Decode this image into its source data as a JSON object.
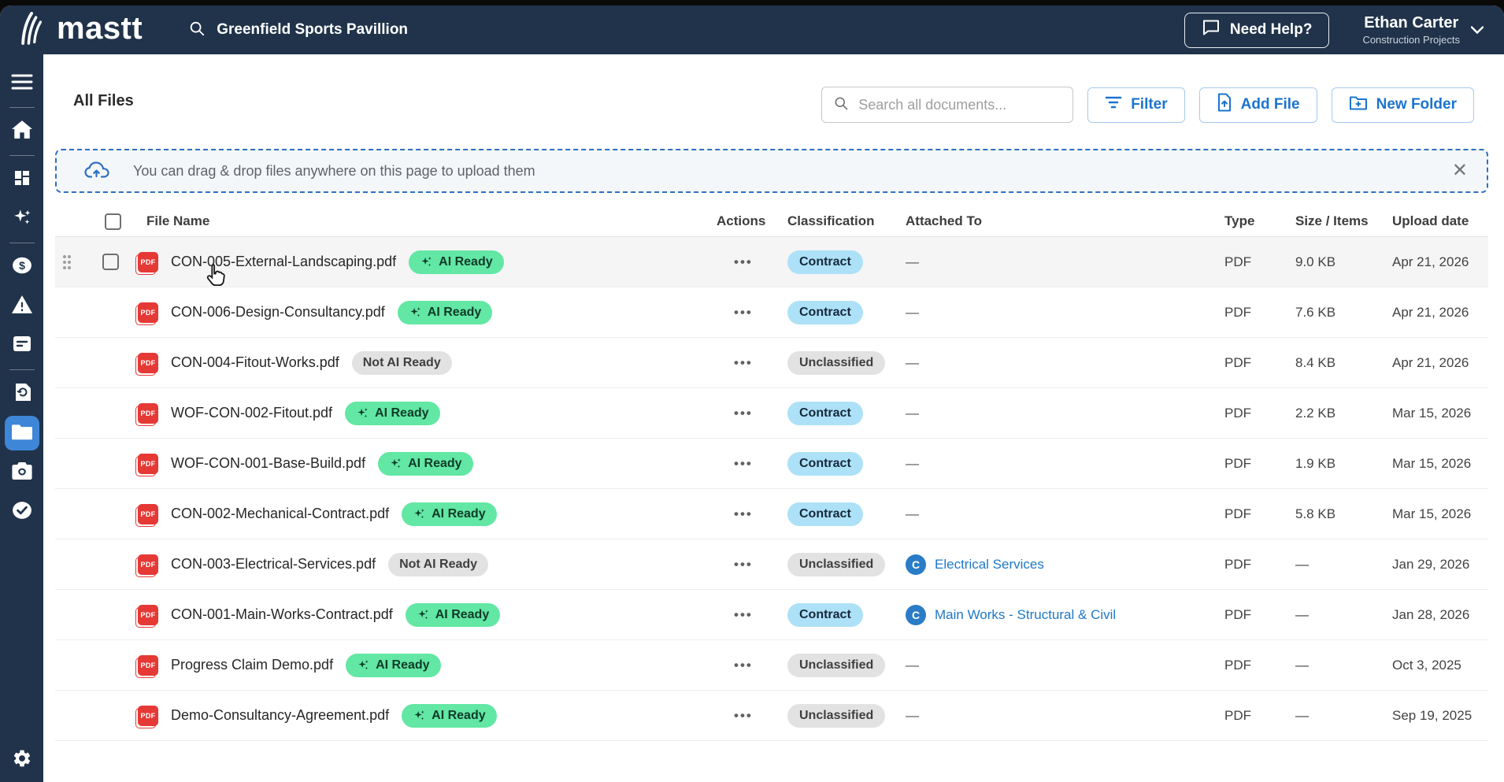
{
  "topbar": {
    "logo_text": "mastt",
    "project_name": "Greenfield Sports Pavillion",
    "help_button": "Need Help?",
    "user": {
      "name": "Ethan Carter",
      "subtitle": "Construction Projects"
    }
  },
  "sidebar": {
    "items": [
      {
        "id": "menu",
        "icon": "hamburger-icon",
        "divider_after": true
      },
      {
        "id": "home",
        "icon": "home-icon",
        "divider_after": true
      },
      {
        "id": "dashboard",
        "icon": "dashboard-icon",
        "divider_after": false
      },
      {
        "id": "ai-assistant",
        "icon": "sparkles-icon",
        "divider_after": true
      },
      {
        "id": "payments",
        "icon": "dollar-circle-icon",
        "divider_after": false
      },
      {
        "id": "risks",
        "icon": "warning-triangle-icon",
        "divider_after": false
      },
      {
        "id": "reports",
        "icon": "report-icon",
        "divider_after": true
      },
      {
        "id": "history",
        "icon": "history-icon",
        "divider_after": false
      },
      {
        "id": "files",
        "icon": "folder-icon",
        "divider_after": false,
        "active": true
      },
      {
        "id": "photos",
        "icon": "camera-icon",
        "divider_after": false
      },
      {
        "id": "approvals",
        "icon": "check-circle-icon",
        "divider_after": false
      }
    ],
    "bottom_item": {
      "id": "settings",
      "icon": "gear-icon"
    }
  },
  "page": {
    "title": "All Files",
    "search_placeholder": "Search all documents...",
    "filter_button": "Filter",
    "add_file_button": "Add File",
    "new_folder_button": "New Folder",
    "upload_banner_text": "You can drag & drop files anywhere on this page to upload them"
  },
  "icons": {
    "more_actions": "•••",
    "close": "✕",
    "pdf_label": "PDF"
  },
  "table": {
    "columns": [
      "File Name",
      "Actions",
      "Classification",
      "Attached To",
      "Type",
      "Size / Items",
      "Upload date"
    ],
    "rows": [
      {
        "file": "CON-005-External-Landscaping.pdf",
        "ai_badge": "AI Ready",
        "classification": "Contract",
        "attached": "—",
        "type": "PDF",
        "size": "9.0 KB",
        "date": "Apr 21, 2026",
        "hover": true,
        "controls": true
      },
      {
        "file": "CON-006-Design-Consultancy.pdf",
        "ai_badge": "AI Ready",
        "classification": "Contract",
        "attached": "—",
        "type": "PDF",
        "size": "7.6 KB",
        "date": "Apr 21, 2026"
      },
      {
        "file": "CON-004-Fitout-Works.pdf",
        "ai_badge": "Not AI Ready",
        "classification": "Unclassified",
        "attached": "—",
        "type": "PDF",
        "size": "8.4 KB",
        "date": "Apr 21, 2026"
      },
      {
        "file": "WOF-CON-002-Fitout.pdf",
        "ai_badge": "AI Ready",
        "classification": "Contract",
        "attached": "—",
        "type": "PDF",
        "size": "2.2 KB",
        "date": "Mar 15, 2026"
      },
      {
        "file": "WOF-CON-001-Base-Build.pdf",
        "ai_badge": "AI Ready",
        "classification": "Contract",
        "attached": "—",
        "type": "PDF",
        "size": "1.9 KB",
        "date": "Mar 15, 2026"
      },
      {
        "file": "CON-002-Mechanical-Contract.pdf",
        "ai_badge": "AI Ready",
        "classification": "Contract",
        "attached": "—",
        "type": "PDF",
        "size": "5.8 KB",
        "date": "Mar 15, 2026"
      },
      {
        "file": "CON-003-Electrical-Services.pdf",
        "ai_badge": "Not AI Ready",
        "classification": "Unclassified",
        "attached": {
          "avatar": "C",
          "label": "Electrical Services"
        },
        "type": "PDF",
        "size": "—",
        "date": "Jan 29, 2026"
      },
      {
        "file": "CON-001-Main-Works-Contract.pdf",
        "ai_badge": "AI Ready",
        "classification": "Contract",
        "attached": {
          "avatar": "C",
          "label": "Main Works - Structural & Civil"
        },
        "type": "PDF",
        "size": "—",
        "date": "Jan 28, 2026"
      },
      {
        "file": "Progress Claim Demo.pdf",
        "ai_badge": "AI Ready",
        "classification": "Unclassified",
        "attached": "—",
        "type": "PDF",
        "size": "—",
        "date": "Oct 3, 2025"
      },
      {
        "file": "Demo-Consultancy-Agreement.pdf",
        "ai_badge": "AI Ready",
        "classification": "Unclassified",
        "attached": "—",
        "type": "PDF",
        "size": "—",
        "date": "Sep 19, 2025"
      }
    ]
  },
  "colors": {
    "navy": "#20334a",
    "active_item_blue": "#3e86d8",
    "button_blue": "#1b74ce",
    "link_blue": "#1e78c8",
    "ai_ready_green": "#62e7a4",
    "contract_blue": "#ade1f7",
    "neutral_gray": "#e2e2e2",
    "pdf_red": "#e53935",
    "banner_border_blue": "#2e6fc0"
  }
}
